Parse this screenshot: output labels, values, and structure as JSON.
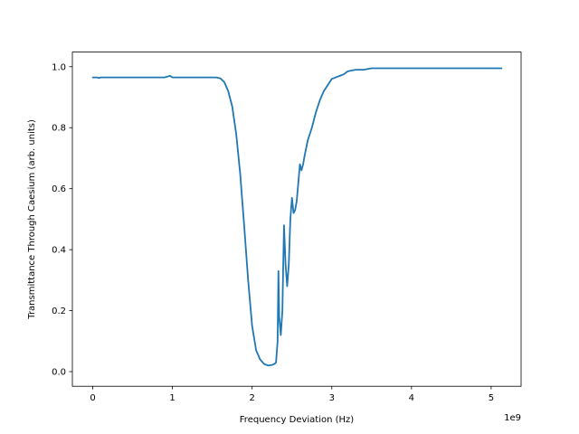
{
  "chart_data": {
    "type": "line",
    "title": "",
    "xlabel": "Frequency Deviation (Hz)",
    "ylabel": "Transmittance Through Caesium (arb. units)",
    "x_offset_label": "1e9",
    "xlim": [
      -0.256,
      5.376
    ],
    "ylim": [
      -0.048,
      1.048
    ],
    "x_scale": 1000000000,
    "x_ticks": [
      0,
      1,
      2,
      3,
      4,
      5
    ],
    "x_tick_labels": [
      "0",
      "1",
      "2",
      "3",
      "4",
      "5"
    ],
    "y_ticks": [
      0.0,
      0.2,
      0.4,
      0.6,
      0.8,
      1.0
    ],
    "y_tick_labels": [
      "0.0",
      "0.2",
      "0.4",
      "0.6",
      "0.8",
      "1.0"
    ],
    "grid": false,
    "legend": "none",
    "series_color": "#1f77b4",
    "series": [
      {
        "name": "",
        "x": [
          0,
          0.05,
          0.08,
          0.1,
          0.3,
          0.5,
          0.7,
          0.9,
          0.97,
          1.0,
          1.2,
          1.4,
          1.55,
          1.6,
          1.65,
          1.7,
          1.75,
          1.8,
          1.85,
          1.9,
          1.95,
          2.0,
          2.05,
          2.1,
          2.15,
          2.2,
          2.25,
          2.28,
          2.3,
          2.32,
          2.33,
          2.34,
          2.36,
          2.38,
          2.4,
          2.42,
          2.44,
          2.46,
          2.48,
          2.5,
          2.52,
          2.54,
          2.56,
          2.58,
          2.6,
          2.62,
          2.64,
          2.66,
          2.7,
          2.75,
          2.8,
          2.85,
          2.9,
          2.95,
          3.0,
          3.05,
          3.1,
          3.15,
          3.2,
          3.3,
          3.4,
          3.5,
          3.6,
          3.7,
          3.8,
          4.0,
          4.2,
          4.4,
          4.6,
          4.8,
          5.0,
          5.13
        ],
        "y": [
          0.965,
          0.965,
          0.963,
          0.965,
          0.965,
          0.965,
          0.965,
          0.965,
          0.97,
          0.965,
          0.965,
          0.965,
          0.965,
          0.962,
          0.95,
          0.92,
          0.87,
          0.78,
          0.65,
          0.48,
          0.3,
          0.15,
          0.07,
          0.04,
          0.025,
          0.02,
          0.022,
          0.025,
          0.03,
          0.1,
          0.33,
          0.18,
          0.12,
          0.2,
          0.48,
          0.35,
          0.28,
          0.35,
          0.5,
          0.57,
          0.52,
          0.53,
          0.56,
          0.62,
          0.68,
          0.66,
          0.68,
          0.71,
          0.76,
          0.8,
          0.85,
          0.89,
          0.92,
          0.94,
          0.96,
          0.965,
          0.97,
          0.975,
          0.985,
          0.99,
          0.99,
          0.995,
          0.995,
          0.995,
          0.995,
          0.995,
          0.995,
          0.995,
          0.995,
          0.995,
          0.995,
          0.995
        ]
      }
    ]
  }
}
